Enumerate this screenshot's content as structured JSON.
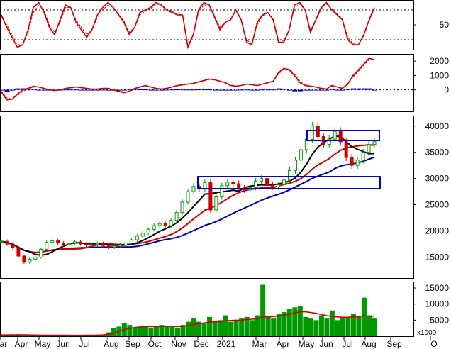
{
  "chart_data": [
    {
      "type": "line",
      "panel": "stochastic-oscillator",
      "title": "",
      "ylim": [
        0,
        100
      ],
      "yticks": [
        50
      ],
      "reference_lines": [
        20,
        80
      ],
      "series": [
        {
          "name": "",
          "color": "#cc0000",
          "style": "solid",
          "values": [
            70,
            45,
            25,
            5,
            10,
            40,
            85,
            95,
            75,
            45,
            30,
            60,
            90,
            85,
            55,
            40,
            25,
            40,
            70,
            85,
            95,
            85,
            70,
            55,
            30,
            45,
            75,
            80,
            85,
            95,
            90,
            80,
            75,
            70,
            70,
            5,
            30,
            80,
            95,
            90,
            65,
            40,
            55,
            60,
            80,
            60,
            15,
            10,
            55,
            70,
            75,
            60,
            15,
            15,
            40,
            90,
            95,
            80,
            35,
            60,
            85,
            95,
            80,
            70,
            60,
            20,
            10,
            10,
            30,
            60,
            85
          ]
        },
        {
          "name": "",
          "color": "#cc0000",
          "style": "dashed",
          "values": [
            65,
            50,
            30,
            10,
            10,
            35,
            75,
            90,
            80,
            50,
            35,
            55,
            85,
            85,
            60,
            45,
            30,
            40,
            65,
            80,
            90,
            85,
            72,
            58,
            35,
            45,
            70,
            78,
            82,
            92,
            90,
            82,
            77,
            72,
            70,
            10,
            30,
            75,
            90,
            90,
            68,
            45,
            55,
            60,
            78,
            62,
            20,
            12,
            50,
            68,
            74,
            62,
            20,
            18,
            40,
            85,
            92,
            80,
            40,
            58,
            82,
            92,
            82,
            72,
            62,
            25,
            12,
            10,
            28,
            58,
            82
          ]
        }
      ]
    },
    {
      "type": "area",
      "panel": "macd",
      "title": "",
      "ylim": [
        -1500,
        2500
      ],
      "yticks": [
        2000,
        1000,
        0
      ],
      "series": [
        {
          "name": "",
          "color": "#cc0000",
          "style": "solid",
          "values": [
            -150,
            -700,
            -650,
            -300,
            0,
            100,
            250,
            200,
            100,
            0,
            -50,
            0,
            100,
            150,
            200,
            150,
            100,
            50,
            50,
            100,
            100,
            0,
            -100,
            -200,
            -100,
            100,
            200,
            300,
            200,
            100,
            50,
            100,
            200,
            300,
            350,
            400,
            450,
            550,
            650,
            750,
            700,
            600,
            500,
            300,
            250,
            300,
            400,
            350,
            300,
            400,
            500,
            600,
            1200,
            1500,
            1400,
            1000,
            500,
            300,
            250,
            200,
            100,
            50,
            300,
            200,
            100,
            400,
            1000,
            1400,
            1800,
            2200,
            2100
          ]
        },
        {
          "name": "",
          "color": "#cc0000",
          "style": "dashed",
          "values": [
            -100,
            -550,
            -650,
            -400,
            -100,
            50,
            200,
            200,
            120,
            20,
            -30,
            0,
            80,
            130,
            180,
            160,
            110,
            60,
            50,
            90,
            100,
            30,
            -60,
            -150,
            -120,
            50,
            170,
            270,
            220,
            120,
            60,
            90,
            180,
            270,
            330,
            380,
            430,
            520,
            620,
            720,
            700,
            620,
            520,
            340,
            270,
            290,
            380,
            360,
            310,
            380,
            480,
            580,
            1100,
            1450,
            1450,
            1100,
            600,
            350,
            270,
            220,
            120,
            60,
            250,
            220,
            120,
            350,
            900,
            1300,
            1700,
            2100,
            2100
          ]
        },
        {
          "name": "",
          "color": "#0000cc",
          "style": "histogram",
          "values": [
            -50,
            -150,
            0,
            100,
            100,
            50,
            50,
            0,
            -20,
            -20,
            -20,
            0,
            20,
            20,
            20,
            -10,
            -10,
            -10,
            0,
            10,
            0,
            -30,
            -40,
            -50,
            20,
            50,
            30,
            30,
            -20,
            -20,
            -10,
            10,
            20,
            30,
            20,
            20,
            20,
            30,
            30,
            30,
            0,
            -20,
            -20,
            -40,
            -20,
            10,
            20,
            -10,
            -10,
            20,
            20,
            20,
            100,
            50,
            -50,
            -100,
            -100,
            -50,
            -20,
            -20,
            -20,
            -10,
            50,
            -20,
            -20,
            50,
            100,
            100,
            100,
            100,
            0
          ]
        }
      ]
    },
    {
      "type": "candlestick",
      "panel": "price",
      "title": "",
      "xlabel": "",
      "ylabel": "",
      "ylim": [
        11000,
        42000
      ],
      "yticks": [
        40000,
        35000,
        30000,
        25000,
        20000,
        15000
      ],
      "categories": [
        "ar",
        "Apr",
        "May",
        "Jun",
        "Jul",
        "Aug",
        "Sep",
        "Oct",
        "Nov",
        "Dec",
        "2021",
        "Mar",
        "Apr",
        "May",
        "Jun",
        "Jul",
        "Aug",
        "Sep",
        "O"
      ],
      "close": [
        18000,
        17500,
        16800,
        15200,
        14000,
        14600,
        15000,
        16500,
        17800,
        18100,
        17700,
        17400,
        17600,
        17900,
        17500,
        17300,
        17400,
        17600,
        17200,
        16900,
        17100,
        17300,
        17700,
        18300,
        19000,
        19600,
        20300,
        21000,
        21400,
        21000,
        22000,
        23500,
        25500,
        27500,
        28500,
        28000,
        29200,
        24000,
        26500,
        28600,
        29300,
        29000,
        28200,
        27800,
        28300,
        29500,
        30000,
        28700,
        28400,
        28800,
        29700,
        31500,
        33500,
        35500,
        37500,
        40000,
        38000,
        36500,
        37500,
        39000,
        37000,
        34000,
        32500,
        33500,
        35000,
        36500,
        37000
      ]
    },
    {
      "type": "bar",
      "panel": "volume",
      "title": "",
      "ylim": [
        0,
        17000
      ],
      "yticks": [
        15000,
        10000,
        5000
      ],
      "unit_label": "x1000",
      "values": [
        300,
        500,
        400,
        600,
        300,
        400,
        300,
        200,
        300,
        400,
        300,
        200,
        300,
        200,
        300,
        200,
        300,
        400,
        300,
        500,
        1200,
        2500,
        3000,
        4000,
        3500,
        2800,
        3000,
        3200,
        2500,
        3000,
        3500,
        3200,
        3000,
        2600,
        3500,
        4500,
        5500,
        4500,
        4000,
        6000,
        4500,
        5000,
        6500,
        4500,
        5000,
        5500,
        6000,
        5000,
        6500,
        16000,
        6000,
        5500,
        7000,
        7500,
        8500,
        9000,
        9500,
        6000,
        5500,
        5000,
        6500,
        5500,
        8000,
        5000,
        5500,
        6000,
        7000,
        6000,
        12000,
        6500,
        5500
      ],
      "ma_line": {
        "color": "#cc0000",
        "values": [
          400,
          400,
          420,
          420,
          410,
          400,
          380,
          350,
          340,
          320,
          310,
          300,
          300,
          290,
          290,
          290,
          300,
          320,
          350,
          400,
          600,
          1000,
          1500,
          2000,
          2400,
          2700,
          2900,
          3000,
          3000,
          3000,
          3100,
          3100,
          3100,
          3000,
          3100,
          3300,
          3600,
          3900,
          4100,
          4400,
          4500,
          4600,
          4800,
          4900,
          5000,
          5000,
          5200,
          5300,
          5400,
          6000,
          6100,
          6100,
          6300,
          6500,
          6800,
          7200,
          7600,
          7600,
          7400,
          7100,
          6800,
          6400,
          6200,
          6000,
          5900,
          5900,
          6000,
          6100,
          6300,
          6300,
          6200
        ]
      }
    }
  ],
  "legend": {
    "volume_unit": "x1000"
  }
}
